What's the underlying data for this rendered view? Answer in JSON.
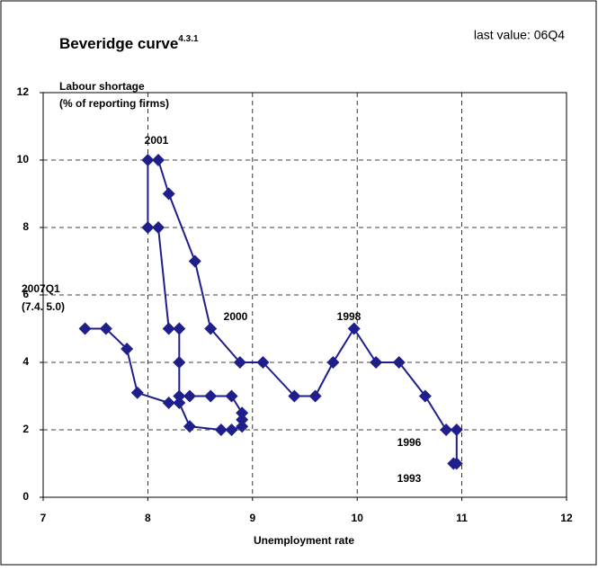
{
  "chart_data": {
    "type": "line",
    "title": "Beveridge curve",
    "title_superscript": "4.3.1",
    "subtitle": "last value: 06Q4",
    "y_label": [
      "Labour shortage",
      "(% of reporting firms)"
    ],
    "x_label": "Unemployment rate",
    "annotations": [
      "2001",
      "2007Q1",
      "(7.4. 5.0)",
      "2000",
      "1998",
      "1996",
      "1993"
    ],
    "xlim": [
      7,
      12
    ],
    "xticks": [
      7,
      8,
      9,
      10,
      11,
      12
    ],
    "ylim": [
      0,
      12
    ],
    "yticks": [
      0,
      2,
      4,
      6,
      8,
      10,
      12
    ],
    "grid": true,
    "series": [
      {
        "color": "#1f1f8c",
        "x": [
          10.92,
          10.95,
          10.95,
          10.85,
          10.65,
          10.4,
          10.18,
          9.97,
          9.77,
          9.6,
          9.4,
          9.1,
          8.88,
          8.6,
          8.45,
          8.2,
          8.1,
          8.0,
          8.0,
          8.1,
          8.2,
          8.3,
          8.3,
          8.3,
          8.4,
          8.6,
          8.8,
          8.9,
          8.9,
          8.9,
          8.8,
          8.7,
          8.4,
          8.3,
          8.2,
          7.9,
          7.8,
          7.6,
          7.4
        ],
        "values": [
          1.0,
          1.0,
          2.0,
          2.0,
          3.0,
          4.0,
          4.0,
          5.0,
          4.0,
          3.0,
          3.0,
          4.0,
          4.0,
          5.0,
          7.0,
          9.0,
          10.0,
          10.0,
          8.0,
          8.0,
          5.0,
          5.0,
          4.0,
          3.0,
          3.0,
          3.0,
          3.0,
          2.5,
          2.3,
          2.1,
          2.0,
          2.0,
          2.1,
          2.8,
          2.8,
          3.1,
          4.4,
          5.0,
          5.0
        ]
      }
    ]
  }
}
